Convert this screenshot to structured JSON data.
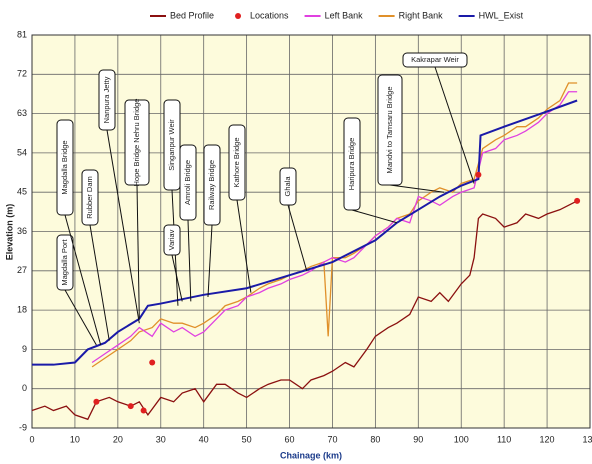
{
  "chart_data": {
    "type": "line",
    "xlabel": "Chainage (km)",
    "ylabel": "Elevation (m)",
    "xlim": [
      0,
      130
    ],
    "ylim": [
      -9,
      81
    ],
    "xticks": [
      0,
      10,
      20,
      30,
      40,
      50,
      60,
      70,
      80,
      90,
      100,
      110,
      120,
      130
    ],
    "yticks": [
      -9,
      0,
      9,
      18,
      27,
      36,
      45,
      54,
      63,
      72,
      81
    ],
    "grid": true,
    "legend": "top",
    "series": [
      {
        "name": "Bed Profile",
        "color": "#8b1010",
        "type": "line",
        "x": [
          0,
          3,
          5,
          8,
          10,
          13,
          15,
          18,
          20,
          23,
          25,
          27,
          30,
          33,
          35,
          38,
          40,
          43,
          45,
          48,
          50,
          53,
          55,
          58,
          60,
          63,
          65,
          68,
          70,
          73,
          75,
          78,
          80,
          83,
          85,
          88,
          90,
          93,
          95,
          97,
          100,
          102,
          103,
          104,
          105,
          108,
          110,
          113,
          115,
          118,
          120,
          123,
          125,
          127
        ],
        "values": [
          -5,
          -4,
          -5,
          -4,
          -6,
          -7,
          -3,
          -2,
          -3,
          -4,
          -3,
          -6,
          -2,
          -3,
          -1,
          0,
          -3,
          1,
          1,
          -1,
          -2,
          0,
          1,
          2,
          2,
          0,
          2,
          3,
          4,
          6,
          5,
          9,
          12,
          14,
          15,
          17,
          21,
          20,
          22,
          20,
          24,
          26,
          30,
          39,
          40,
          39,
          37,
          38,
          40,
          39,
          40,
          41,
          42,
          43
        ]
      },
      {
        "name": "Locations",
        "color": "#e02020",
        "type": "scatter",
        "x": [
          15,
          23,
          26,
          28,
          104,
          127
        ],
        "values": [
          -3,
          -4,
          -5,
          6,
          49,
          43
        ]
      },
      {
        "name": "Left Bank",
        "color": "#e040e0",
        "type": "line",
        "x": [
          14,
          17,
          20,
          23,
          25,
          28,
          30,
          33,
          35,
          38,
          40,
          43,
          45,
          48,
          50,
          53,
          55,
          58,
          60,
          63,
          65,
          68,
          70,
          73,
          75,
          78,
          80,
          83,
          85,
          88,
          90,
          93,
          95,
          98,
          100,
          103,
          105,
          108,
          110,
          113,
          115,
          118,
          120,
          123,
          125,
          127
        ],
        "values": [
          6,
          8,
          10,
          12,
          14,
          12,
          15,
          13,
          14,
          12,
          13,
          16,
          18,
          19,
          21,
          22,
          23,
          24,
          25,
          26,
          27,
          29,
          30,
          29,
          30,
          33,
          35,
          37,
          39,
          38,
          44,
          43,
          42,
          44,
          45,
          46,
          54,
          55,
          57,
          58,
          59,
          61,
          63,
          65,
          68,
          68
        ]
      },
      {
        "name": "Right Bank",
        "color": "#e0902a",
        "type": "line",
        "x": [
          14,
          17,
          20,
          23,
          25,
          28,
          30,
          33,
          35,
          38,
          40,
          43,
          45,
          48,
          50,
          53,
          55,
          58,
          60,
          63,
          65,
          68,
          69,
          70,
          73,
          75,
          78,
          80,
          83,
          85,
          88,
          90,
          93,
          95,
          98,
          100,
          103,
          105,
          108,
          110,
          113,
          115,
          118,
          120,
          123,
          125,
          127
        ],
        "values": [
          5,
          7,
          9,
          11,
          13,
          14,
          16,
          15,
          15,
          14,
          15,
          17,
          19,
          20,
          21,
          23,
          24,
          25,
          26,
          27,
          28,
          29,
          12,
          30,
          30,
          31,
          33,
          35,
          37,
          39,
          40,
          43,
          45,
          46,
          45,
          47,
          48,
          55,
          57,
          58,
          60,
          60,
          62,
          64,
          66,
          70,
          70
        ]
      },
      {
        "name": "HWL_Exist",
        "color": "#1a1aa8",
        "type": "line",
        "x": [
          0,
          5,
          10,
          13,
          17,
          20,
          25,
          27,
          30,
          40,
          50,
          60,
          70,
          80,
          85,
          90,
          95,
          100,
          104,
          104.5,
          110,
          120,
          127
        ],
        "values": [
          5.5,
          5.5,
          6,
          9,
          10.5,
          13,
          16,
          19,
          19.5,
          21.5,
          23,
          26,
          29,
          34,
          38,
          41,
          44,
          46.5,
          48,
          58,
          60,
          63.5,
          66
        ]
      }
    ],
    "annotations": [
      {
        "text": "Magdalla Port",
        "x": 15,
        "y": 10
      },
      {
        "text": "Magdalla Bridge",
        "x": 16,
        "y": 10
      },
      {
        "text": "Rubber Dam",
        "x": 18,
        "y": 11
      },
      {
        "text": "Nanpura Jetty",
        "x": 25,
        "y": 15
      },
      {
        "text": "Hope Bridge Nehru Bridge",
        "x": 25,
        "y": 16
      },
      {
        "text": "Singanpur Weir",
        "x": 34,
        "y": 19
      },
      {
        "text": "Variav",
        "x": 35,
        "y": 20
      },
      {
        "text": "Amroli Bridge",
        "x": 37,
        "y": 20
      },
      {
        "text": "Railway Bridge",
        "x": 41,
        "y": 21
      },
      {
        "text": "Kathore Bridge",
        "x": 51,
        "y": 22
      },
      {
        "text": "Ghala",
        "x": 64,
        "y": 27
      },
      {
        "text": "Haripura Bridge",
        "x": 85,
        "y": 38
      },
      {
        "text": "Mandvi to Tamsaru Bridge",
        "x": 96,
        "y": 45
      },
      {
        "text": "Kakrapar Weir",
        "x": 103,
        "y": 47
      }
    ]
  }
}
